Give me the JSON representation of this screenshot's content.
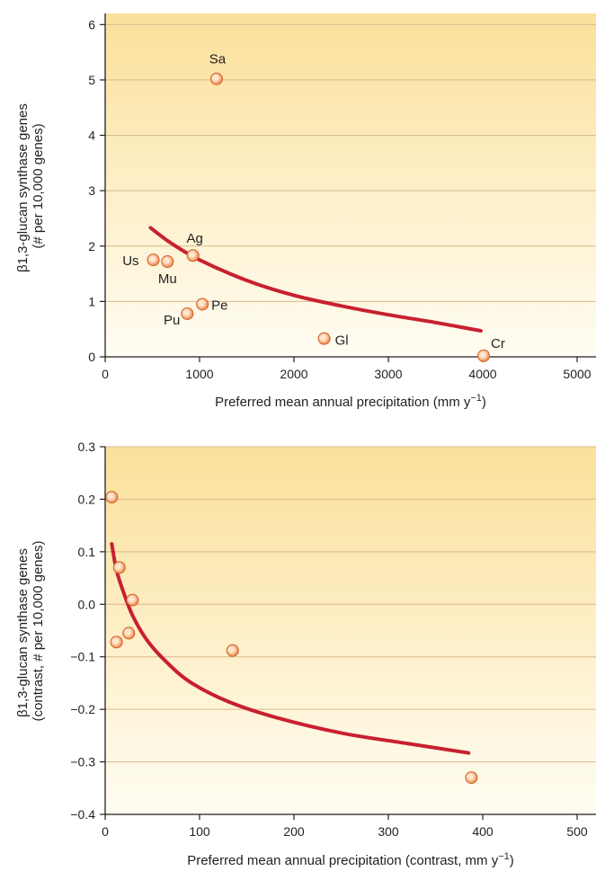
{
  "chart_data": [
    {
      "type": "scatter",
      "xlabel": "Preferred mean annual precipitation (mm y",
      "xlabel_sup": "−1",
      "xlabel_end": ")",
      "ylabel_line1": "β1,3-glucan synthase genes",
      "ylabel_line2": "(# per 10,000 genes)",
      "xlim": [
        0,
        5200
      ],
      "ylim": [
        0,
        6.2
      ],
      "xticks": [
        0,
        1000,
        2000,
        3000,
        4000,
        5000
      ],
      "yticks": [
        0,
        1,
        2,
        3,
        4,
        5,
        6
      ],
      "grid": "horizontal",
      "points": [
        {
          "label": "Sa",
          "x": 1180,
          "y": 5.02
        },
        {
          "label": "Ag",
          "x": 930,
          "y": 1.83
        },
        {
          "label": "Us",
          "x": 510,
          "y": 1.75
        },
        {
          "label": "Mu",
          "x": 660,
          "y": 1.72
        },
        {
          "label": "Pe",
          "x": 1030,
          "y": 0.95
        },
        {
          "label": "Pu",
          "x": 870,
          "y": 0.78
        },
        {
          "label": "Gl",
          "x": 2320,
          "y": 0.33
        },
        {
          "label": "Cr",
          "x": 4010,
          "y": 0.02
        }
      ],
      "fit_line": [
        {
          "x": 480,
          "y": 2.33
        },
        {
          "x": 700,
          "y": 2.05
        },
        {
          "x": 1000,
          "y": 1.75
        },
        {
          "x": 1500,
          "y": 1.38
        },
        {
          "x": 2000,
          "y": 1.11
        },
        {
          "x": 2500,
          "y": 0.92
        },
        {
          "x": 3000,
          "y": 0.76
        },
        {
          "x": 3500,
          "y": 0.62
        },
        {
          "x": 3980,
          "y": 0.47
        }
      ]
    },
    {
      "type": "scatter",
      "xlabel": "Preferred mean annual precipitation (contrast, mm y",
      "xlabel_sup": "−1",
      "xlabel_end": ")",
      "ylabel_line1": "β1,3-glucan synthase genes",
      "ylabel_line2": "(contrast, # per 10,000 genes)",
      "xlim": [
        0,
        520
      ],
      "ylim": [
        -0.4,
        0.3
      ],
      "xticks": [
        0,
        100,
        200,
        300,
        400,
        500
      ],
      "yticks": [
        -0.4,
        -0.3,
        -0.2,
        -0.1,
        0.0,
        0.1,
        0.2,
        0.3
      ],
      "ytick_labels": [
        "−0.4",
        "−0.3",
        "−0.2",
        "−0.1",
        "0.0",
        "0.1",
        "0.2",
        "0.3"
      ],
      "grid": "horizontal",
      "points": [
        {
          "x": 7,
          "y": 0.204
        },
        {
          "x": 15,
          "y": 0.07
        },
        {
          "x": 29,
          "y": 0.008
        },
        {
          "x": 12,
          "y": -0.072
        },
        {
          "x": 25,
          "y": -0.055
        },
        {
          "x": 135,
          "y": -0.088
        },
        {
          "x": 388,
          "y": -0.33
        }
      ],
      "fit_line": [
        {
          "x": 7,
          "y": 0.115
        },
        {
          "x": 12,
          "y": 0.065
        },
        {
          "x": 20,
          "y": 0.02
        },
        {
          "x": 30,
          "y": -0.025
        },
        {
          "x": 45,
          "y": -0.07
        },
        {
          "x": 65,
          "y": -0.11
        },
        {
          "x": 90,
          "y": -0.148
        },
        {
          "x": 130,
          "y": -0.185
        },
        {
          "x": 180,
          "y": -0.215
        },
        {
          "x": 250,
          "y": -0.245
        },
        {
          "x": 320,
          "y": -0.265
        },
        {
          "x": 385,
          "y": -0.283
        }
      ]
    }
  ],
  "colors": {
    "bg_top": "#fbe09a",
    "bg_bottom": "#fffdf3",
    "grid": "#d9b98a",
    "fit_line": "#c8202f",
    "point": "#f07f3c",
    "point_highlight": "#fde7cf",
    "axis": "#231f20"
  }
}
